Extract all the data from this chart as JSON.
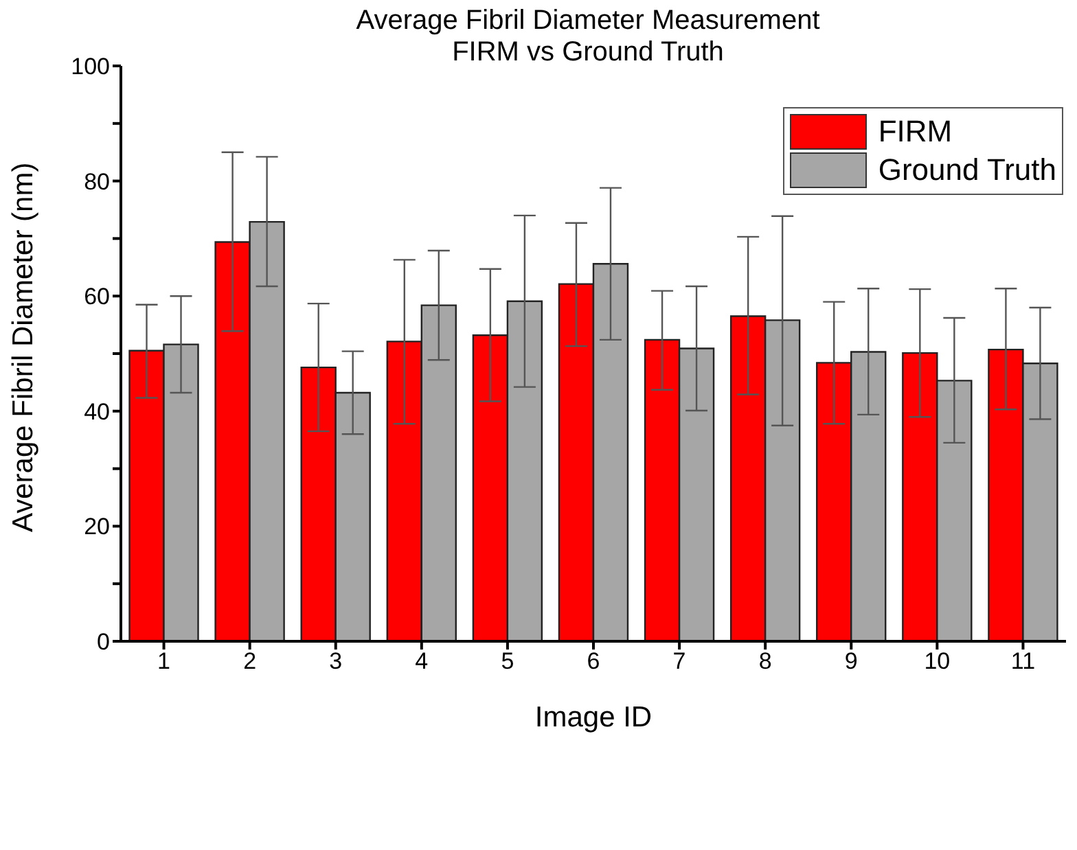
{
  "chart_data": {
    "type": "bar",
    "title": "Average Fibril Diameter Measurement\nFIRM vs Ground Truth",
    "xlabel": "Image ID",
    "ylabel": "Average Fibril Diameter (nm)",
    "categories": [
      "1",
      "2",
      "3",
      "4",
      "5",
      "6",
      "7",
      "8",
      "9",
      "10",
      "11"
    ],
    "series": [
      {
        "name": "FIRM",
        "color": "#ff0000",
        "values": [
          50.5,
          69.4,
          47.6,
          52.1,
          53.2,
          62.1,
          52.4,
          56.5,
          48.4,
          50.1,
          50.7
        ],
        "errors": [
          [
            42.3,
            58.5
          ],
          [
            53.9,
            85.0
          ],
          [
            36.5,
            58.7
          ],
          [
            37.8,
            66.3
          ],
          [
            41.7,
            64.7
          ],
          [
            51.3,
            72.7
          ],
          [
            43.7,
            60.9
          ],
          [
            42.9,
            70.3
          ],
          [
            37.8,
            59.0
          ],
          [
            39.0,
            61.2
          ],
          [
            40.3,
            61.3
          ]
        ]
      },
      {
        "name": "Ground Truth",
        "color": "#a6a6a6",
        "values": [
          51.6,
          72.9,
          43.2,
          58.4,
          59.1,
          65.6,
          50.9,
          55.8,
          50.3,
          45.3,
          48.3
        ],
        "errors": [
          [
            43.2,
            60.0
          ],
          [
            61.7,
            84.2
          ],
          [
            36.0,
            50.4
          ],
          [
            48.9,
            67.9
          ],
          [
            44.2,
            74.0
          ],
          [
            52.4,
            78.8
          ],
          [
            40.1,
            61.7
          ],
          [
            37.5,
            73.9
          ],
          [
            39.4,
            61.3
          ],
          [
            34.5,
            56.2
          ],
          [
            38.6,
            58.0
          ]
        ]
      }
    ],
    "ylim": [
      0,
      100
    ],
    "yticks": [
      0,
      {
        "value": 10,
        "label": null
      },
      20,
      {
        "value": 30,
        "label": null
      },
      40,
      {
        "value": 50,
        "label": null
      },
      60,
      {
        "value": 70,
        "label": null
      },
      80,
      {
        "value": 90,
        "label": null
      },
      100
    ],
    "grid": false,
    "legend": "top right"
  }
}
